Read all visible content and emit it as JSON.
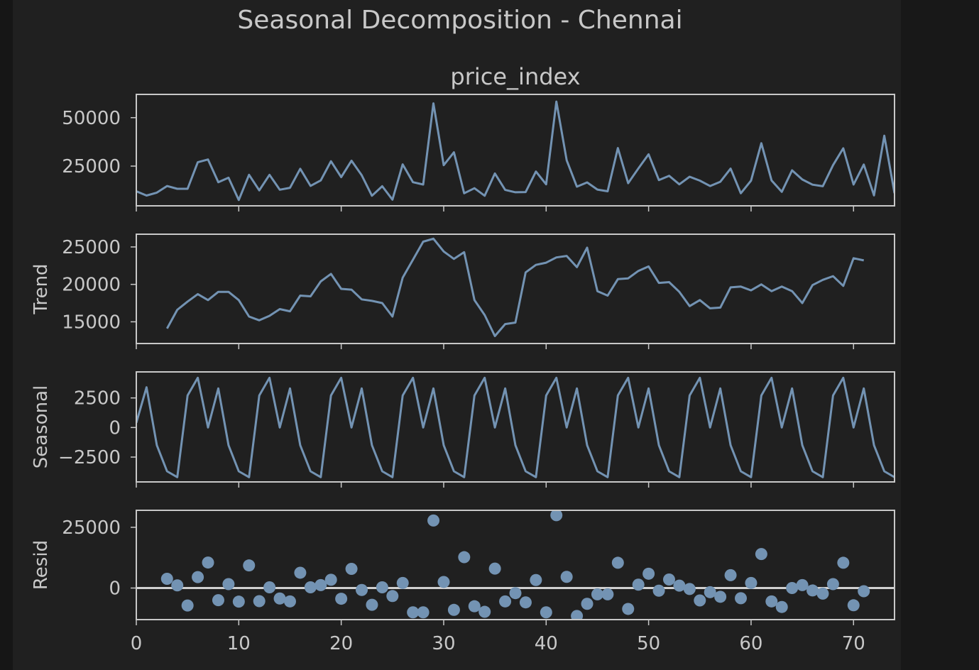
{
  "chart_data": {
    "type": "line",
    "suptitle": "Seasonal Decomposition - Chennai",
    "x_ticks": [
      0,
      10,
      20,
      30,
      40,
      50,
      60,
      70
    ],
    "xlim": [
      0,
      74
    ],
    "series_color": "#7393b3",
    "panels": [
      {
        "id": "observed",
        "type": "line",
        "title": "price_index",
        "ylabel": "",
        "ylim": [
          4500,
          62000
        ],
        "yticks": [
          25000,
          50000
        ],
        "x_start": 0,
        "values": [
          12000,
          9800,
          11300,
          14700,
          13300,
          13300,
          27000,
          28400,
          16700,
          19000,
          7500,
          20500,
          12500,
          20500,
          12800,
          13800,
          23600,
          14800,
          17600,
          27500,
          19300,
          27800,
          20300,
          9700,
          14600,
          7700,
          25900,
          16700,
          15500,
          57400,
          25500,
          32100,
          11000,
          13600,
          9700,
          21200,
          12700,
          11500,
          11600,
          22200,
          15600,
          58300,
          28000,
          14400,
          16600,
          12900,
          12000,
          34300,
          16200,
          23800,
          31100,
          17800,
          20000,
          15600,
          19500,
          17500,
          14700,
          16900,
          23700,
          11000,
          17500,
          36800,
          17600,
          11700,
          22800,
          18100,
          15400,
          14600,
          25500,
          34200,
          15500,
          25800,
          9900,
          40700,
          11000
        ]
      },
      {
        "id": "trend",
        "type": "line",
        "title": "",
        "ylabel": "Trend",
        "ylim": [
          12100,
          26700
        ],
        "yticks": [
          15000,
          20000,
          25000
        ],
        "x_start": 3,
        "values": [
          14100,
          16600,
          17700,
          18700,
          17900,
          19000,
          19000,
          17900,
          15700,
          15200,
          15800,
          16700,
          16400,
          18500,
          18400,
          20400,
          21400,
          19400,
          19300,
          18000,
          17800,
          17500,
          15700,
          20900,
          23300,
          25700,
          26100,
          24400,
          23400,
          24300,
          17900,
          15900,
          13100,
          14700,
          14900,
          21600,
          22600,
          22900,
          23600,
          23800,
          22300,
          24900,
          19100,
          18500,
          20700,
          20800,
          21800,
          22400,
          20200,
          20300,
          19000,
          17100,
          17900,
          16800,
          16900,
          19600,
          19700,
          19200,
          20000,
          19100,
          19700,
          19100,
          17500,
          19900,
          20600,
          21100,
          19800,
          23500,
          23200
        ]
      },
      {
        "id": "seasonal",
        "type": "line",
        "title": "",
        "ylabel": "Seasonal",
        "ylim": [
          -4600,
          4700
        ],
        "yticks": [
          -2500,
          0,
          2500
        ],
        "x_start": 0,
        "values": [
          400,
          3400,
          -1500,
          -3700,
          -4200,
          2700,
          4200,
          0,
          3300,
          -1500,
          -3700,
          -4200,
          2700,
          4200,
          0,
          3300,
          -1500,
          -3700,
          -4200,
          2700,
          4200,
          0,
          3300,
          -1500,
          -3700,
          -4200,
          2700,
          4200,
          0,
          3300,
          -1500,
          -3700,
          -4200,
          2700,
          4200,
          0,
          3300,
          -1500,
          -3700,
          -4200,
          2700,
          4200,
          0,
          3300,
          -1500,
          -3700,
          -4200,
          2700,
          4200,
          0,
          3300,
          -1500,
          -3700,
          -4200,
          2700,
          4200,
          0,
          3300,
          -1500,
          -3700,
          -4200,
          2700,
          4200,
          0,
          3300,
          -1500,
          -3700,
          -4200,
          2700,
          4200,
          0,
          3300,
          -1500,
          -3700,
          -4200
        ]
      },
      {
        "id": "resid",
        "type": "scatter",
        "title": "",
        "ylabel": "Resid",
        "ylim": [
          -13000,
          32000
        ],
        "yticks": [
          0,
          25000
        ],
        "zero_line": true,
        "x_start": 3,
        "values": [
          3800,
          1100,
          -7200,
          4500,
          10500,
          -5000,
          1600,
          -5600,
          9300,
          -5400,
          300,
          -4300,
          -5500,
          6300,
          300,
          1200,
          3400,
          -4400,
          7900,
          -800,
          -6900,
          300,
          -3300,
          2100,
          -10000,
          -10000,
          27800,
          2500,
          -9000,
          12700,
          -7500,
          -9800,
          8000,
          -5500,
          -2100,
          -5900,
          3300,
          -10000,
          30000,
          4600,
          -11500,
          -6500,
          -2600,
          -2600,
          10400,
          -8600,
          1400,
          5900,
          -1100,
          3500,
          1000,
          -400,
          -5100,
          -1700,
          -3600,
          5300,
          -4200,
          2100,
          14000,
          -5500,
          -7800,
          0,
          1200,
          -1000,
          -2300,
          1600,
          10400,
          -7100,
          -1300
        ]
      }
    ]
  }
}
